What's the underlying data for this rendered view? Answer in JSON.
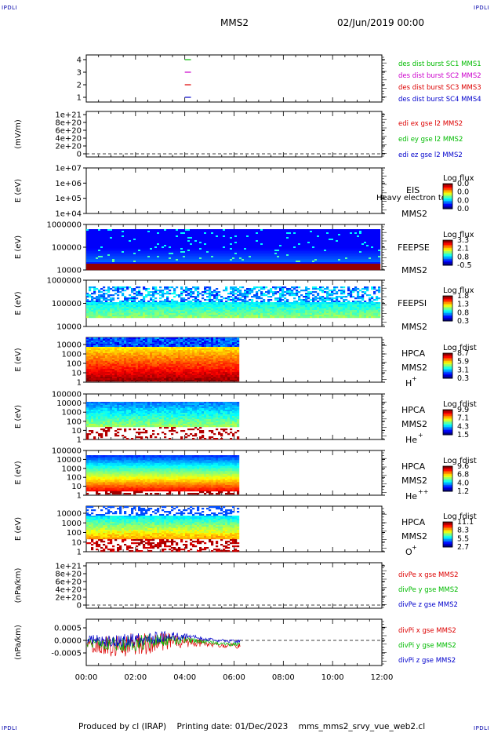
{
  "corner_label": "IPDLI",
  "header": {
    "spacecraft": "MMS2",
    "datetime": "02/Jun/2019 00:00"
  },
  "footer": {
    "produced_by": "Produced by cl (IRAP)",
    "printing_date": "Printing date: 01/Dec/2023",
    "file": "mms_mms2_srvy_vue_web2.cl"
  },
  "colors": {
    "red": "#dd0000",
    "green": "#00bb00",
    "blue": "#0000cc",
    "magenta": "#cc00cc"
  },
  "chart_data": [
    {
      "type": "line",
      "panel": "availability",
      "yticks": [
        "4",
        "3",
        "2",
        "1"
      ],
      "ylim": [
        0.5,
        4.5
      ],
      "series": [
        {
          "name": "des dist burst SC1 MMS1",
          "color": "#00bb00",
          "level": 4,
          "x": [
            4.0,
            4.25
          ]
        },
        {
          "name": "des dist burst SC2 MMS2",
          "color": "#cc00cc",
          "level": 3,
          "x": [
            4.0,
            4.25
          ]
        },
        {
          "name": "des dist burst SC3 MMS3",
          "color": "#dd0000",
          "level": 2,
          "x": [
            4.0,
            4.25
          ]
        },
        {
          "name": "des dist burst SC4 MMS4",
          "color": "#0000cc",
          "level": 1,
          "x": [
            4.0,
            4.25
          ]
        }
      ]
    },
    {
      "type": "line",
      "panel": "edi",
      "ylabel": "(mV/m)",
      "yticks": [
        "1e+21",
        "8e+20",
        "6e+20",
        "4e+20",
        "2e+20",
        "0"
      ],
      "ylim": [
        0,
        1e+21
      ],
      "zero_line": true,
      "series": [
        {
          "name": "edi ex gse l2 MMS2",
          "color": "#dd0000"
        },
        {
          "name": "edi ey gse l2 MMS2",
          "color": "#00bb00"
        },
        {
          "name": "edi ez gse l2 MMS2",
          "color": "#0000cc"
        }
      ]
    },
    {
      "type": "heatmap",
      "panel": "eis",
      "ylabel": "E (eV)",
      "yticks": [
        "1e+07",
        "1e+06",
        "1e+05",
        "1e+04"
      ],
      "ylim": [
        10000.0,
        10000000.0
      ],
      "log": true,
      "labels": [
        "EIS",
        "MMS2"
      ],
      "overlay_text": "Heavy electron tofs",
      "colorbar": {
        "title": "Log flux",
        "ticks": [
          "0.0",
          "0.0",
          "0.0",
          "0.0"
        ]
      }
    },
    {
      "type": "heatmap",
      "panel": "feepse",
      "ylabel": "E (eV)",
      "yticks": [
        "1000000",
        "100000",
        "10000"
      ],
      "ylim": [
        10000.0,
        1000000.0
      ],
      "log": true,
      "labels": [
        "FEEPSE",
        "MMS2"
      ],
      "x_range": [
        0,
        12
      ],
      "colorbar": {
        "title": "Log flux",
        "ticks": [
          "3.3",
          "2.1",
          "0.8",
          "-0.5"
        ]
      }
    },
    {
      "type": "heatmap",
      "panel": "feepsi",
      "ylabel": "E (eV)",
      "yticks": [
        "1000000",
        "100000",
        "10000"
      ],
      "ylim": [
        10000.0,
        1000000.0
      ],
      "log": true,
      "labels": [
        "FEEPSI",
        "MMS2"
      ],
      "x_range": [
        0,
        12
      ],
      "colorbar": {
        "title": "Log flux",
        "ticks": [
          "1.8",
          "1.3",
          "0.8",
          "0.3"
        ]
      }
    },
    {
      "type": "heatmap",
      "panel": "hpca_h",
      "ylabel": "E (eV)",
      "yticks": [
        "10000",
        "1000",
        "100",
        "10",
        "1"
      ],
      "ylim": [
        1,
        30000
      ],
      "log": true,
      "labels": [
        "HPCA",
        "MMS2",
        "H",
        "+"
      ],
      "x_range": [
        0,
        6.25
      ],
      "colorbar": {
        "title": "Log fdist",
        "ticks": [
          "8.7",
          "5.9",
          "3.1",
          "0.3"
        ]
      }
    },
    {
      "type": "heatmap",
      "panel": "hpca_he",
      "ylabel": "E (eV)",
      "yticks": [
        "100000",
        "10000",
        "1000",
        "100",
        "10",
        "1"
      ],
      "ylim": [
        1,
        100000
      ],
      "log": true,
      "labels": [
        "HPCA",
        "MMS2",
        "He",
        "+"
      ],
      "x_range": [
        0,
        6.25
      ],
      "colorbar": {
        "title": "Log fdist",
        "ticks": [
          "9.9",
          "7.1",
          "4.3",
          "1.5"
        ]
      }
    },
    {
      "type": "heatmap",
      "panel": "hpca_hepp",
      "ylabel": "E (eV)",
      "yticks": [
        "100000",
        "10000",
        "1000",
        "100",
        "10",
        "1"
      ],
      "ylim": [
        1,
        100000
      ],
      "log": true,
      "labels": [
        "HPCA",
        "MMS2",
        "He",
        "++"
      ],
      "x_range": [
        0,
        6.25
      ],
      "colorbar": {
        "title": "Log fdist",
        "ticks": [
          "9.6",
          "6.8",
          "4.0",
          "1.2"
        ]
      }
    },
    {
      "type": "heatmap",
      "panel": "hpca_o",
      "ylabel": "E (eV)",
      "yticks": [
        "10000",
        "1000",
        "100",
        "10",
        "1"
      ],
      "ylim": [
        1,
        30000
      ],
      "log": true,
      "labels": [
        "HPCA",
        "MMS2",
        "O",
        "+"
      ],
      "x_range": [
        0,
        6.25
      ],
      "colorbar": {
        "title": "Log fdist",
        "ticks": [
          "11.1",
          "8.3",
          "5.5",
          "2.7"
        ]
      }
    },
    {
      "type": "line",
      "panel": "divpe",
      "ylabel": "(nPa/km)",
      "yticks": [
        "1e+21",
        "8e+20",
        "6e+20",
        "4e+20",
        "2e+20",
        "0"
      ],
      "ylim": [
        0,
        1e+21
      ],
      "zero_line": true,
      "series": [
        {
          "name": "divPe x gse MMS2",
          "color": "#dd0000"
        },
        {
          "name": "divPe y gse MMS2",
          "color": "#00bb00"
        },
        {
          "name": "divPe z gse MMS2",
          "color": "#0000cc"
        }
      ]
    },
    {
      "type": "line",
      "panel": "divpi",
      "ylabel": "(nPa/km)",
      "yticks": [
        "0.0005",
        "0.0000",
        "-0.0005"
      ],
      "ylim": [
        -0.0009,
        0.0008
      ],
      "zero_line": true,
      "x_range": [
        0,
        6.25
      ],
      "series": [
        {
          "name": "divPi x gse MMS2",
          "color": "#dd0000"
        },
        {
          "name": "divPi y gse MMS2",
          "color": "#00bb00"
        },
        {
          "name": "divPi z gse MMS2",
          "color": "#0000cc"
        }
      ]
    }
  ],
  "x_axis": {
    "ticks": [
      "00:00",
      "02:00",
      "04:00",
      "06:00",
      "08:00",
      "10:00",
      "12:00"
    ],
    "xlim": [
      0,
      12
    ]
  }
}
